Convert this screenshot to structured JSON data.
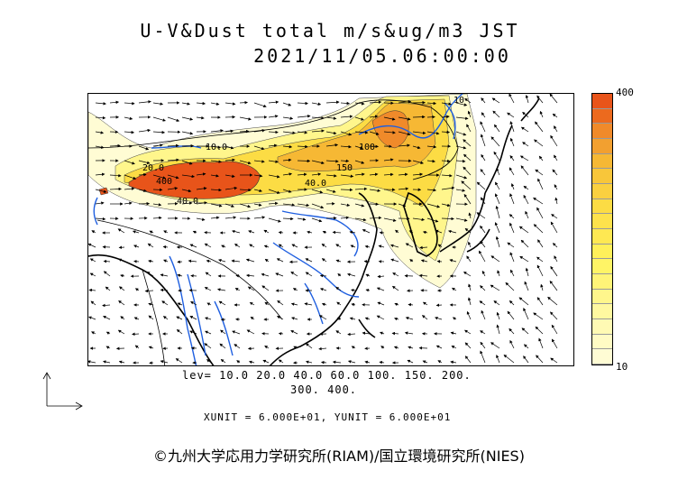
{
  "header": {
    "title_line1": "U-V&Dust total m/s&ug/m3 JST",
    "title_line2": "2021/11/05.06:00:00"
  },
  "colorbar": {
    "max_label": "400",
    "min_label": "10",
    "colors": [
      "#e8541a",
      "#ec6a1e",
      "#f08a2a",
      "#f2a030",
      "#f6b834",
      "#f8c63a",
      "#fad040",
      "#fcdc44",
      "#fde24c",
      "#fee852",
      "#fff05a",
      "#fff466",
      "#fff478",
      "#fff68c",
      "#fff8a0",
      "#fffab4",
      "#fffbc4",
      "#fffcd4"
    ]
  },
  "footer": {
    "levels_line1": "lev= 10.0 20.0 40.0 60.0 100. 150. 200.",
    "levels_line2": "300. 400.",
    "unit_line": "XUNIT = 6.000E+01, YUNIT = 6.000E+01",
    "credit": "©九州大学応用力学研究所(RIAM)/国立環境研究所(NIES)"
  },
  "map": {
    "contour_labels": [
      "400",
      "40.0",
      "100",
      "150",
      "40.0",
      "20.0",
      "10.0",
      "10"
    ]
  }
}
